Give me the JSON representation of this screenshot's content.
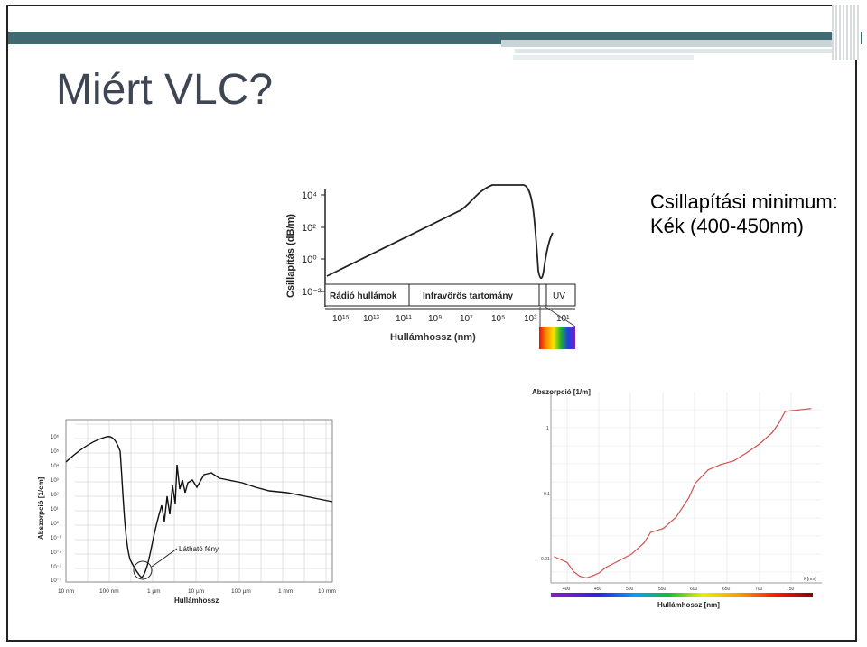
{
  "slide": {
    "title": "Miért VLC?",
    "note_line1": "Csillapítási minimum:",
    "note_line2": "Kék (400-450nm)"
  },
  "chart_data": [
    {
      "type": "line",
      "ylabel": "Csillapítás (dB/m)",
      "xlabel": "Hullámhossz (nm)",
      "y_tick_labels": [
        "10⁻²",
        "10⁰",
        "10²",
        "10⁴"
      ],
      "x_tick_labels": [
        "10¹⁵",
        "10¹³",
        "10¹¹",
        "10⁹",
        "10⁷",
        "10⁵",
        "10³",
        "10¹"
      ],
      "bands": [
        "Rádió hullámok",
        "Infravörös tartomány",
        "UV"
      ],
      "y_scale": "log"
    },
    {
      "type": "line",
      "ylabel": "Abszorpció [1/cm]",
      "xlabel": "Hullámhossz",
      "annotation": "Látható fény",
      "x_tick_labels": [
        "10 nm",
        "100 nm",
        "1 µm",
        "10 µm",
        "100 µm",
        "1 mm",
        "10 mm"
      ],
      "y_tick_labels": [
        "10⁶",
        "10⁵",
        "10⁴",
        "10³",
        "10²",
        "10¹",
        "10⁰",
        "10⁻¹",
        "10⁻²",
        "10⁻³",
        "10⁻⁴"
      ],
      "x_scale": "log",
      "y_scale": "log"
    },
    {
      "type": "line",
      "ylabel": "Abszorpció [1/m]",
      "xlabel": "Hullámhossz [nm]",
      "x_axis_label": "λ [nm]",
      "x_tick_labels": [
        "400",
        "450",
        "500",
        "550",
        "600",
        "650",
        "700",
        "750"
      ],
      "y_tick_labels": [
        "1",
        "0.1",
        "0.01"
      ],
      "y_scale": "log",
      "x": [
        380,
        400,
        410,
        420,
        430,
        440,
        450,
        460,
        480,
        500,
        520,
        530,
        550,
        570,
        590,
        600,
        620,
        640,
        660,
        680,
        700,
        720,
        730,
        740,
        760,
        780
      ],
      "y": [
        0.011,
        0.009,
        0.0065,
        0.0055,
        0.0052,
        0.0056,
        0.0062,
        0.0075,
        0.0095,
        0.012,
        0.018,
        0.026,
        0.03,
        0.045,
        0.09,
        0.15,
        0.24,
        0.29,
        0.33,
        0.44,
        0.6,
        0.9,
        1.25,
        1.9,
        2.0,
        2.1
      ]
    }
  ]
}
